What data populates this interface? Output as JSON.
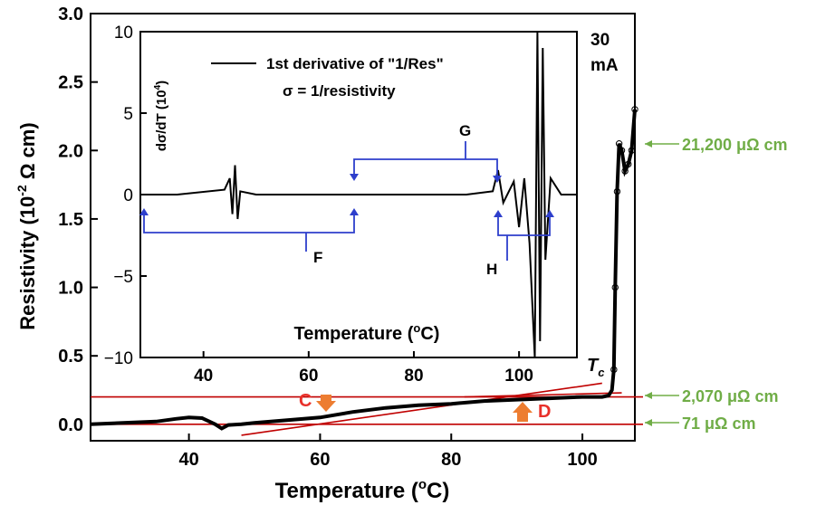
{
  "chart_data": [
    {
      "type": "scatter",
      "xlabel": "Temperature (",
      "xlabel_sup": "o",
      "xlabel_tail": "C)",
      "ylabel": "Resistivity (10",
      "ylabel_sup": "-2",
      "ylabel_tail": " Ω cm)",
      "xlim": [
        25,
        108
      ],
      "ylim": [
        -0.12,
        3.0
      ],
      "x_ticks": [
        40,
        60,
        80,
        100
      ],
      "x_tick_labels": [
        "40",
        "60",
        "80",
        "100"
      ],
      "y_ticks": [
        0.0,
        0.5,
        1.0,
        1.5,
        2.0,
        2.5,
        3.0
      ],
      "y_tick_labels": [
        "0.0",
        "0.5",
        "1.0",
        "1.5",
        "2.0",
        "2.5",
        "3.0"
      ],
      "current_label_line1": "30",
      "current_label_line2": "mA",
      "tc_label": "T",
      "tc_sub": "c",
      "series": [
        {
          "x": [
            25,
            30,
            35,
            38,
            40,
            42,
            44,
            45,
            46,
            48,
            50,
            55,
            60,
            65,
            70,
            75,
            80,
            85,
            90,
            95,
            100,
            103,
            104,
            104.5,
            104.8,
            105,
            105.3,
            105.6,
            106,
            106.5,
            107,
            107.5,
            108
          ],
          "y": [
            0.0,
            0.01,
            0.02,
            0.04,
            0.05,
            0.045,
            0.0,
            -0.03,
            -0.005,
            0.0,
            0.01,
            0.03,
            0.05,
            0.09,
            0.12,
            0.14,
            0.15,
            0.17,
            0.18,
            0.19,
            0.2,
            0.2,
            0.21,
            0.25,
            0.4,
            1.0,
            1.7,
            2.05,
            2.0,
            1.85,
            1.9,
            2.0,
            2.3
          ]
        }
      ],
      "reference_lines": [
        {
          "name": "71 µΩ cm baseline",
          "type": "h",
          "y": 0.0
        },
        {
          "name": "2,070 µΩ cm",
          "type": "h",
          "y": 0.2
        },
        {
          "name": "tangent",
          "type": "segment",
          "x": [
            48,
            103
          ],
          "y": [
            -0.08,
            0.3
          ]
        },
        {
          "name": "tangent-upper",
          "type": "segment",
          "x": [
            82,
            106
          ],
          "y": [
            0.2,
            0.23
          ]
        }
      ],
      "annotations": {
        "C": "C",
        "D": "D",
        "right_labels": [
          "21,200 μΩ cm",
          "2,070 μΩ cm",
          "71 μΩ cm"
        ]
      }
    },
    {
      "type": "line",
      "legend": "1st derivative of \"1/Res\"",
      "legend_sub": "σ = 1/resistivity",
      "xlabel": "Temperature (",
      "xlabel_sup": "o",
      "xlabel_tail": "C)",
      "ylabel": "dσ/dT (10",
      "ylabel_sup": "4",
      "ylabel_tail": ")",
      "xlim": [
        28,
        111
      ],
      "ylim": [
        -10,
        10
      ],
      "x_ticks": [
        40,
        60,
        80,
        100
      ],
      "x_tick_labels": [
        "40",
        "60",
        "80",
        "100"
      ],
      "y_ticks": [
        -10,
        -5,
        0,
        5,
        10
      ],
      "y_tick_labels": [
        "−10",
        "−5",
        "0",
        "5",
        "10"
      ],
      "series": [
        {
          "x": [
            28,
            35,
            44,
            45,
            45.5,
            46,
            46.5,
            47,
            50,
            60,
            70,
            80,
            85,
            90,
            95,
            96,
            97,
            99,
            100,
            101,
            102,
            103,
            103.5,
            104,
            104.5,
            105,
            106,
            108,
            111
          ],
          "y": [
            0,
            0,
            0.3,
            1.0,
            -1.2,
            1.8,
            -1.5,
            0.2,
            0,
            0,
            0,
            0,
            0,
            0,
            0.2,
            1.5,
            -0.5,
            0.8,
            -2.0,
            1.0,
            -3.0,
            -10,
            10,
            -9,
            9,
            -4,
            1,
            0,
            0
          ]
        }
      ],
      "brackets": {
        "F": "F",
        "G": "G",
        "H": "H"
      }
    }
  ]
}
